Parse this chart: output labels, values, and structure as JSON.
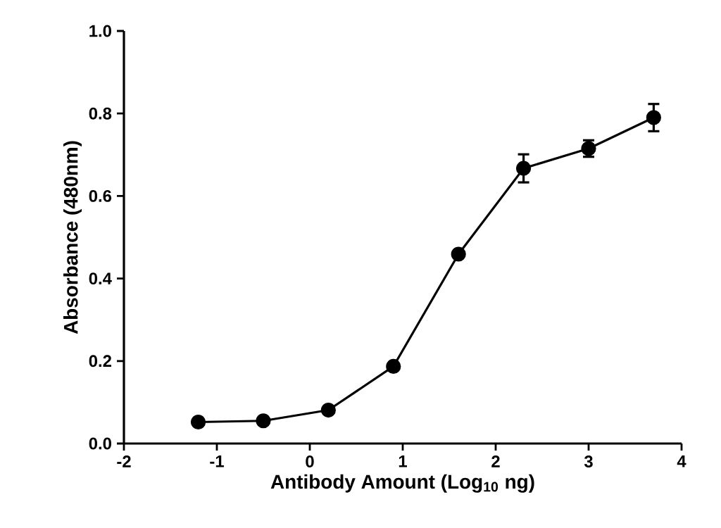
{
  "chart_data": {
    "type": "line",
    "xlabel": "Antibody Amount (Log$_{10}$ ng)",
    "ylabel": "Absorbance (480nm)",
    "x": [
      -1.2,
      -0.5,
      0.2,
      0.9,
      1.6,
      2.3,
      3.0,
      3.7
    ],
    "series": [
      {
        "color": "#000000",
        "values": [
          0.052,
          0.055,
          0.081,
          0.187,
          0.459,
          0.667,
          0.715,
          0.79
        ],
        "errors": [
          null,
          null,
          null,
          null,
          null,
          0.034,
          0.02,
          0.033
        ]
      }
    ],
    "xlim": [
      -2,
      4
    ],
    "ylim": [
      0,
      1.0
    ],
    "xticks": [
      -2,
      -1,
      0,
      1,
      2,
      3,
      4
    ],
    "yticks": [
      {
        "value": 0,
        "label": "0.0"
      },
      {
        "value": 0.2,
        "label": "0.2"
      },
      {
        "value": 0.4,
        "label": "0.4"
      },
      {
        "value": 0.6,
        "label": "0.6"
      },
      {
        "value": 0.8,
        "label": "0.8"
      },
      {
        "value": 1.0,
        "label": "1.0"
      }
    ],
    "marker": "circle",
    "line_style": "solid",
    "grid": false
  }
}
